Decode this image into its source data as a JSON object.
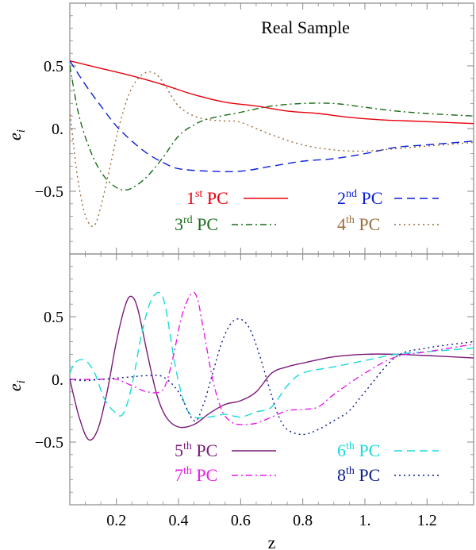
{
  "chart_data": [
    {
      "type": "line",
      "panel": "top",
      "title": "Real Sample",
      "ylabel": "e_i",
      "xlabel": "",
      "xlim": [
        0.05,
        1.35
      ],
      "ylim": [
        -1.0,
        1.0
      ],
      "xticks": [
        0.2,
        0.4,
        0.6,
        0.8,
        1.0,
        1.2
      ],
      "yticks": [
        -0.5,
        0.0,
        0.5
      ],
      "ytick_labels": [
        "−0.5",
        "0.",
        "0.5"
      ],
      "grid": false,
      "legend_position": "lower-center",
      "series": [
        {
          "label_num": "1",
          "label_sup": "st",
          "label_text": "PC",
          "color": "#e8000b",
          "dash": "",
          "x": [
            0.05,
            0.15,
            0.25,
            0.35,
            0.45,
            0.55,
            0.65,
            0.75,
            0.85,
            0.95,
            1.05,
            1.15,
            1.25,
            1.35
          ],
          "y": [
            0.54,
            0.48,
            0.42,
            0.35,
            0.27,
            0.21,
            0.18,
            0.14,
            0.12,
            0.09,
            0.07,
            0.06,
            0.05,
            0.04
          ]
        },
        {
          "label_num": "2",
          "label_sup": "nd",
          "label_text": "PC",
          "color": "#0a1fd6",
          "dash": "10,6",
          "x": [
            0.05,
            0.1,
            0.15,
            0.2,
            0.25,
            0.3,
            0.35,
            0.4,
            0.5,
            0.6,
            0.7,
            0.8,
            0.9,
            1.0,
            1.1,
            1.2,
            1.35
          ],
          "y": [
            0.54,
            0.35,
            0.18,
            0.02,
            -0.1,
            -0.2,
            -0.27,
            -0.32,
            -0.34,
            -0.34,
            -0.3,
            -0.26,
            -0.24,
            -0.2,
            -0.15,
            -0.13,
            -0.1
          ]
        },
        {
          "label_num": "3",
          "label_sup": "rd",
          "label_text": "PC",
          "color": "#1a6b1a",
          "dash": "8,4,2,4",
          "x": [
            0.05,
            0.08,
            0.12,
            0.16,
            0.2,
            0.23,
            0.26,
            0.3,
            0.35,
            0.4,
            0.45,
            0.5,
            0.6,
            0.7,
            0.8,
            0.9,
            1.0,
            1.1,
            1.2,
            1.35
          ],
          "y": [
            0.5,
            0.1,
            -0.2,
            -0.38,
            -0.47,
            -0.49,
            -0.46,
            -0.38,
            -0.23,
            -0.06,
            0.03,
            0.08,
            0.13,
            0.18,
            0.2,
            0.2,
            0.17,
            0.14,
            0.12,
            0.1
          ]
        },
        {
          "label_num": "4",
          "label_sup": "th",
          "label_text": "PC",
          "color": "#9c6b3c",
          "dash": "2,4",
          "x": [
            0.05,
            0.07,
            0.09,
            0.11,
            0.13,
            0.15,
            0.18,
            0.21,
            0.24,
            0.27,
            0.3,
            0.33,
            0.36,
            0.4,
            0.45,
            0.5,
            0.55,
            0.6,
            0.7,
            0.8,
            0.9,
            1.0,
            1.1,
            1.2,
            1.35
          ],
          "y": [
            0.15,
            -0.3,
            -0.6,
            -0.75,
            -0.77,
            -0.62,
            -0.3,
            0.03,
            0.27,
            0.4,
            0.45,
            0.43,
            0.33,
            0.18,
            0.1,
            0.07,
            0.06,
            0.05,
            -0.05,
            -0.13,
            -0.17,
            -0.18,
            -0.16,
            -0.14,
            -0.11
          ]
        }
      ]
    },
    {
      "type": "line",
      "panel": "bottom",
      "title": "",
      "ylabel": "e_i",
      "xlabel": "z",
      "xlim": [
        0.05,
        1.35
      ],
      "ylim": [
        -1.0,
        1.0
      ],
      "xticks": [
        0.2,
        0.4,
        0.6,
        0.8,
        1.0,
        1.2
      ],
      "xtick_labels": [
        "0.2",
        "0.4",
        "0.6",
        "0.8",
        "1.",
        "1.2"
      ],
      "yticks": [
        -0.5,
        0.0,
        0.5
      ],
      "ytick_labels": [
        "−0.5",
        "0.",
        "0.5"
      ],
      "grid": false,
      "legend_position": "lower-center",
      "series": [
        {
          "label_num": "5",
          "label_sup": "th",
          "label_text": "PC",
          "color": "#7a1a7a",
          "dash": "",
          "x": [
            0.05,
            0.08,
            0.11,
            0.14,
            0.17,
            0.2,
            0.23,
            0.25,
            0.27,
            0.3,
            0.33,
            0.36,
            0.4,
            0.45,
            0.5,
            0.55,
            0.6,
            0.65,
            0.7,
            0.75,
            0.8,
            0.9,
            1.0,
            1.1,
            1.2,
            1.35
          ],
          "y": [
            0.0,
            -0.3,
            -0.48,
            -0.4,
            -0.1,
            0.3,
            0.6,
            0.66,
            0.55,
            0.2,
            -0.12,
            -0.3,
            -0.38,
            -0.36,
            -0.27,
            -0.2,
            -0.17,
            -0.1,
            0.05,
            0.1,
            0.13,
            0.18,
            0.2,
            0.2,
            0.19,
            0.17
          ]
        },
        {
          "label_num": "6",
          "label_sup": "th",
          "label_text": "PC",
          "color": "#1adada",
          "dash": "10,6",
          "x": [
            0.05,
            0.07,
            0.1,
            0.13,
            0.16,
            0.19,
            0.22,
            0.25,
            0.28,
            0.31,
            0.34,
            0.36,
            0.39,
            0.42,
            0.45,
            0.5,
            0.55,
            0.6,
            0.65,
            0.7,
            0.75,
            0.8,
            0.9,
            1.0,
            1.1,
            1.2,
            1.35
          ],
          "y": [
            0.05,
            0.14,
            0.15,
            0.05,
            -0.15,
            -0.25,
            -0.28,
            -0.05,
            0.35,
            0.62,
            0.69,
            0.55,
            0.1,
            -0.2,
            -0.3,
            -0.3,
            -0.28,
            -0.3,
            -0.26,
            -0.22,
            -0.05,
            0.05,
            0.1,
            0.15,
            0.2,
            0.22,
            0.25
          ]
        },
        {
          "label_num": "7",
          "label_sup": "th",
          "label_text": "PC",
          "color": "#e81ae8",
          "dash": "8,4,2,4",
          "x": [
            0.05,
            0.1,
            0.15,
            0.2,
            0.25,
            0.3,
            0.35,
            0.38,
            0.41,
            0.44,
            0.46,
            0.48,
            0.51,
            0.54,
            0.57,
            0.6,
            0.65,
            0.7,
            0.75,
            0.8,
            0.85,
            0.9,
            1.0,
            1.1,
            1.2,
            1.35
          ],
          "y": [
            0.0,
            0.0,
            0.0,
            0.0,
            -0.05,
            -0.1,
            -0.08,
            0.15,
            0.5,
            0.68,
            0.65,
            0.4,
            0.0,
            -0.25,
            -0.34,
            -0.36,
            -0.35,
            -0.3,
            -0.25,
            -0.24,
            -0.22,
            -0.12,
            0.05,
            0.18,
            0.22,
            0.28
          ]
        },
        {
          "label_num": "8",
          "label_sup": "th",
          "label_text": "PC",
          "color": "#0a1a8c",
          "dash": "2,4",
          "x": [
            0.05,
            0.1,
            0.15,
            0.2,
            0.25,
            0.3,
            0.35,
            0.4,
            0.45,
            0.48,
            0.51,
            0.54,
            0.57,
            0.6,
            0.63,
            0.66,
            0.69,
            0.72,
            0.75,
            0.8,
            0.85,
            0.9,
            0.95,
            1.0,
            1.1,
            1.2,
            1.35
          ],
          "y": [
            0.0,
            -0.01,
            0.0,
            0.01,
            0.02,
            0.03,
            0.02,
            -0.1,
            -0.33,
            -0.2,
            0.05,
            0.3,
            0.45,
            0.48,
            0.4,
            0.2,
            -0.05,
            -0.28,
            -0.4,
            -0.44,
            -0.4,
            -0.33,
            -0.25,
            -0.1,
            0.18,
            0.25,
            0.3
          ]
        }
      ]
    }
  ]
}
